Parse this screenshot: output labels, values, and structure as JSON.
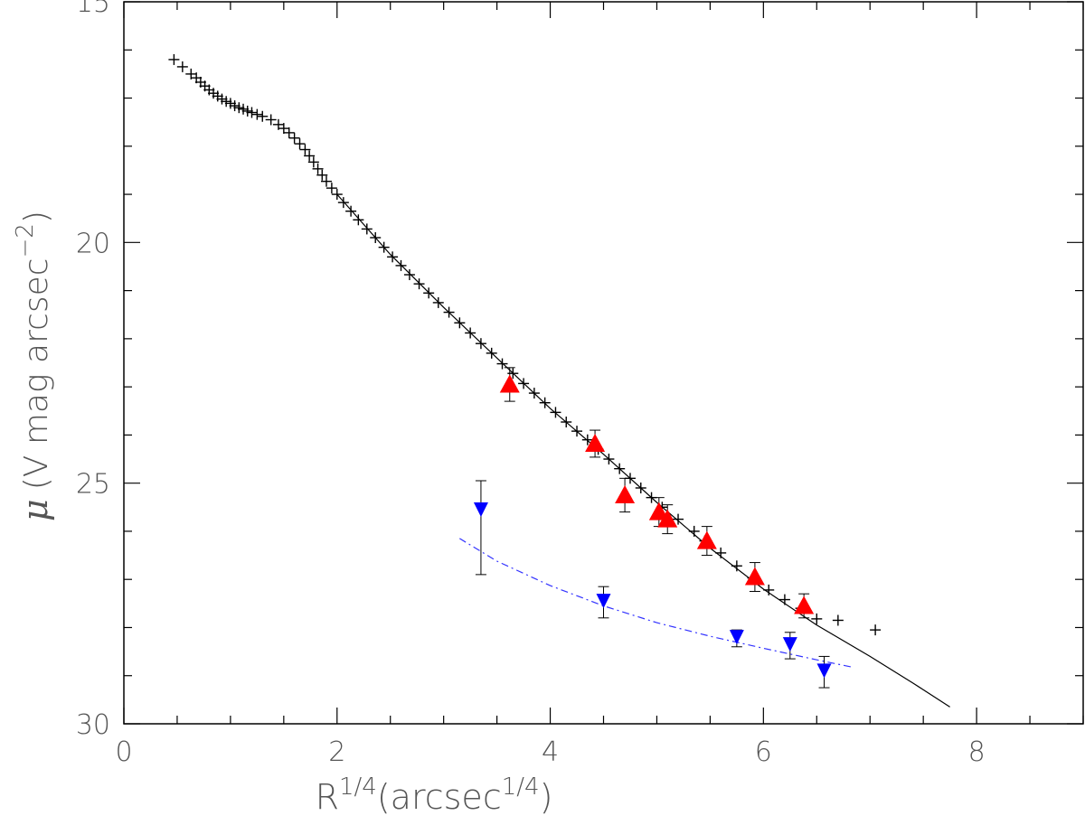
{
  "chart_data": {
    "type": "scatter",
    "title": "",
    "xlabel": {
      "base": "R",
      "base_exp": "1/4",
      "unit": "(arcsec",
      "unit_exp": "1/4",
      "close": ")"
    },
    "ylabel": {
      "symbol": "μ",
      "unit": "(V mag arcsec",
      "unit_exp": "−2",
      "close": ")"
    },
    "xlim": [
      0,
      9
    ],
    "ylim": [
      30,
      15
    ],
    "y_inverted": true,
    "grid": false,
    "legend": "none",
    "x_ticks": [
      0,
      2,
      4,
      6,
      8
    ],
    "y_ticks": [
      15,
      20,
      25,
      30
    ],
    "colors": {
      "axes": "#000000",
      "black_series": "#000000",
      "red_series": "#ff0000",
      "blue_series": "#0000ff",
      "blue_fit": "#3333ff"
    },
    "series": [
      {
        "marker": "plus",
        "color": "#000000",
        "points": [
          [
            0.47,
            16.2
          ],
          [
            0.55,
            16.35
          ],
          [
            0.63,
            16.5
          ],
          [
            0.68,
            16.58
          ],
          [
            0.72,
            16.67
          ],
          [
            0.76,
            16.75
          ],
          [
            0.8,
            16.83
          ],
          [
            0.84,
            16.9
          ],
          [
            0.88,
            16.96
          ],
          [
            0.92,
            17.02
          ],
          [
            0.96,
            17.07
          ],
          [
            1.0,
            17.11
          ],
          [
            1.04,
            17.16
          ],
          [
            1.08,
            17.2
          ],
          [
            1.12,
            17.23
          ],
          [
            1.16,
            17.27
          ],
          [
            1.2,
            17.3
          ],
          [
            1.25,
            17.34
          ],
          [
            1.3,
            17.38
          ],
          [
            1.38,
            17.45
          ],
          [
            1.45,
            17.55
          ],
          [
            1.5,
            17.63
          ],
          [
            1.55,
            17.72
          ],
          [
            1.6,
            17.83
          ],
          [
            1.65,
            17.95
          ],
          [
            1.7,
            18.07
          ],
          [
            1.74,
            18.2
          ],
          [
            1.78,
            18.33
          ],
          [
            1.82,
            18.47
          ],
          [
            1.86,
            18.6
          ],
          [
            1.9,
            18.73
          ],
          [
            1.95,
            18.87
          ],
          [
            2.0,
            19.0
          ],
          [
            2.06,
            19.17
          ],
          [
            2.13,
            19.35
          ],
          [
            2.2,
            19.53
          ],
          [
            2.28,
            19.72
          ],
          [
            2.36,
            19.9
          ],
          [
            2.44,
            20.1
          ],
          [
            2.52,
            20.3
          ],
          [
            2.6,
            20.48
          ],
          [
            2.68,
            20.67
          ],
          [
            2.77,
            20.86
          ],
          [
            2.86,
            21.05
          ],
          [
            2.95,
            21.25
          ],
          [
            3.05,
            21.45
          ],
          [
            3.15,
            21.67
          ],
          [
            3.25,
            21.88
          ],
          [
            3.35,
            22.1
          ],
          [
            3.45,
            22.3
          ],
          [
            3.55,
            22.52
          ],
          [
            3.65,
            22.72
          ],
          [
            3.75,
            22.93
          ],
          [
            3.85,
            23.13
          ],
          [
            3.95,
            23.33
          ],
          [
            4.05,
            23.53
          ],
          [
            4.15,
            23.73
          ],
          [
            4.25,
            23.92
          ],
          [
            4.35,
            24.1
          ],
          [
            4.45,
            24.3
          ],
          [
            4.55,
            24.5
          ],
          [
            4.65,
            24.7
          ],
          [
            4.75,
            24.9
          ],
          [
            4.85,
            25.1
          ],
          [
            4.95,
            25.3
          ],
          [
            5.05,
            25.5
          ],
          [
            5.2,
            25.75
          ],
          [
            5.35,
            26.0
          ],
          [
            5.45,
            26.2
          ],
          [
            5.6,
            26.45
          ],
          [
            5.75,
            26.72
          ],
          [
            5.9,
            26.97
          ],
          [
            6.05,
            27.22
          ],
          [
            6.2,
            27.42
          ],
          [
            6.35,
            27.6
          ],
          [
            6.5,
            27.82
          ],
          [
            6.7,
            27.85
          ],
          [
            7.05,
            28.05
          ]
        ]
      },
      {
        "marker": "triangle-up",
        "color": "#ff0000",
        "points": [
          [
            3.62,
            22.95,
            0.35
          ],
          [
            4.42,
            24.18,
            0.28
          ],
          [
            4.7,
            25.25,
            0.35
          ],
          [
            5.02,
            25.6,
            0.3
          ],
          [
            5.1,
            25.75,
            0.3
          ],
          [
            5.47,
            26.2,
            0.3
          ],
          [
            5.92,
            26.95,
            0.3
          ],
          [
            6.38,
            27.55,
            0.25
          ]
        ]
      },
      {
        "marker": "triangle-down",
        "color": "#0000ff",
        "points": [
          [
            3.35,
            25.55,
            0.6,
            1.35
          ],
          [
            4.5,
            27.45,
            0.3,
            0.35
          ],
          [
            5.75,
            28.2,
            0.15,
            0.2
          ],
          [
            6.25,
            28.35,
            0.25,
            0.3
          ],
          [
            6.57,
            28.9,
            0.3,
            0.35
          ]
        ]
      }
    ],
    "fits": [
      {
        "style": "solid",
        "color": "#000000",
        "points": [
          [
            2.0,
            19.0
          ],
          [
            2.5,
            20.25
          ],
          [
            3.0,
            21.35
          ],
          [
            3.5,
            22.4
          ],
          [
            4.0,
            23.45
          ],
          [
            4.5,
            24.4
          ],
          [
            5.0,
            25.4
          ],
          [
            5.5,
            26.35
          ],
          [
            6.0,
            27.2
          ],
          [
            6.5,
            27.95
          ],
          [
            7.0,
            28.6
          ],
          [
            7.4,
            29.15
          ],
          [
            7.75,
            29.65
          ]
        ]
      },
      {
        "style": "dashdot",
        "color": "#3333ff",
        "points": [
          [
            3.15,
            26.15
          ],
          [
            3.5,
            26.62
          ],
          [
            4.0,
            27.13
          ],
          [
            4.5,
            27.55
          ],
          [
            5.0,
            27.9
          ],
          [
            5.5,
            28.18
          ],
          [
            6.0,
            28.43
          ],
          [
            6.5,
            28.67
          ],
          [
            6.85,
            28.83
          ]
        ]
      }
    ]
  }
}
